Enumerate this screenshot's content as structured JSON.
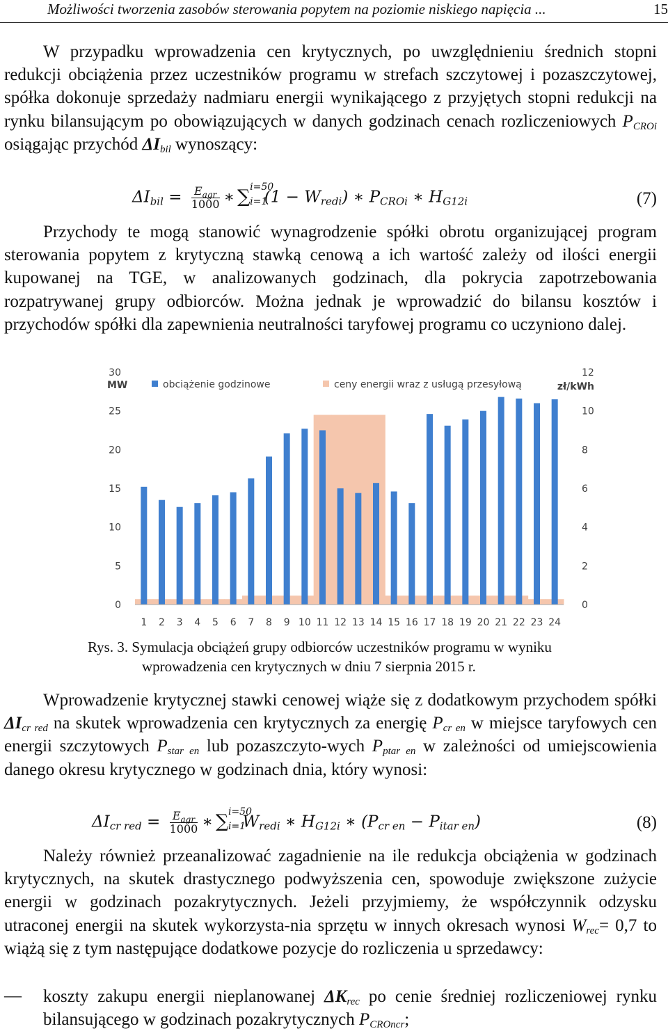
{
  "header": {
    "running_title": "Możliwości  tworzenia zasobów sterowania popytem na poziomie niskiego napięcia ...",
    "page_number": "15"
  },
  "para1": {
    "text_a": "W przypadku wprowadzenia cen krytycznych, po uwzględnieniu średnich stopni redukcji obciążenia przez uczestników programu w strefach szczytowej i pozaszczytowej, spółka dokonuje sprzedaży nadmiaru energii wynikającego z przyjętych stopni redukcji na rynku bilansującym po obowiązujących w danych godzinach cenach rozliczeniowych ",
    "sym_P": "P",
    "sub_CROi": "CROi",
    "text_b": " osiągając przychód ",
    "sym_dI": "ΔI",
    "sub_bil": "bil",
    "text_c": " wynoszący:"
  },
  "eq7": {
    "lhs": "ΔI",
    "lhs_sub": "bil",
    "eq": " = ",
    "frac_num": "E",
    "frac_num_sub": "agr",
    "frac_den": "1000",
    "op1": "∗",
    "sigma": "∑",
    "sum_upper": "i=50",
    "sum_lower": "i=1",
    "term1": "(1 − W",
    "term1_sub": "redi",
    "term1_close": ")",
    "op2": " ∗ P",
    "term2_sub": "CROi",
    "op3": " ∗ H",
    "term3_sub": "G12i",
    "number": "(7)"
  },
  "para2": "Przychody te mogą stanowić wynagrodzenie spółki obrotu organizującej program sterowania popytem z krytyczną stawką cenową a ich wartość zależy od ilości energii kupowanej na TGE, w analizowanych godzinach, dla pokrycia zapotrzebowania rozpatrywanej grupy odbiorców. Można jednak je wprowadzić do bilansu kosztów i przychodów spółki dla zapewnienia neutralności taryfowej programu co uczyniono dalej.",
  "chart_data": {
    "type": "bar",
    "categories": [
      "1",
      "2",
      "3",
      "4",
      "5",
      "6",
      "7",
      "8",
      "9",
      "10",
      "11",
      "12",
      "13",
      "14",
      "15",
      "16",
      "17",
      "18",
      "19",
      "20",
      "21",
      "22",
      "23",
      "24"
    ],
    "series": [
      {
        "name": "obciążenie godzinowe",
        "axis": "left",
        "color": "#3f7fcf",
        "values": [
          15.2,
          13.5,
          12.6,
          13.1,
          14.1,
          14.5,
          16.3,
          19.1,
          22.1,
          22.7,
          22.5,
          15.0,
          14.4,
          15.7,
          14.6,
          13.1,
          24.6,
          23.1,
          23.9,
          25.0,
          26.8,
          26.6,
          26.0,
          26.5
        ]
      },
      {
        "name": "ceny energii wraz z usługą przesyłową",
        "axis": "right",
        "color": "#f5c6ad",
        "values": [
          0.28,
          0.28,
          0.28,
          0.28,
          0.28,
          0.28,
          0.46,
          0.46,
          0.46,
          0.46,
          9.8,
          9.8,
          9.8,
          9.8,
          0.46,
          0.46,
          0.46,
          0.46,
          0.46,
          0.46,
          0.46,
          0.46,
          0.28,
          0.28
        ]
      }
    ],
    "left_axis": {
      "unit": "MW",
      "ylim": [
        0,
        30
      ],
      "ticks": [
        "0",
        "5",
        "10",
        "15",
        "20",
        "25",
        "30"
      ]
    },
    "right_axis": {
      "unit": "zł/kWh",
      "ylim": [
        0,
        12
      ],
      "ticks": [
        "0",
        "2",
        "4",
        "6",
        "8",
        "10",
        "12"
      ]
    },
    "legend_position": "top",
    "grid": false
  },
  "caption": {
    "line1": "Rys. 3. Symulacja obciążeń grupy odbiorców uczestników programu w wyniku",
    "line2": "wprowadzenia cen krytycznych w dniu 7 sierpnia 2015 r."
  },
  "para3": {
    "t1": "Wprowadzenie krytycznej stawki cenowej wiąże się z dodatkowym przychodem spółki ",
    "dI": "ΔI",
    "dI_sub": "cr red",
    "t2": " na skutek wprowadzenia cen krytycznych za energię ",
    "P1": "P",
    "P1_sub": "cr en",
    "t3": " w miejsce taryfowych cen energii szczytowych ",
    "P2": "P",
    "P2_sub": "star en",
    "t4": " lub pozaszczyto-wych ",
    "P3": "P",
    "P3_sub": "ptar en",
    "t5": " w zależności od umiejscowienia danego okresu krytycznego w godzinach dnia, który wynosi:"
  },
  "eq8": {
    "lhs": "ΔI",
    "lhs_sub": "cr red",
    "eq": " = ",
    "frac_num": "E",
    "frac_num_sub": "agr",
    "frac_den": "1000",
    "op1": "∗",
    "sigma": "∑",
    "sum_upper": "i=50",
    "sum_lower": "i=1",
    "term1": "W",
    "term1_sub": "redi",
    "op2": " ∗ H",
    "term2_sub": "G12i",
    "op3": " ∗ (P",
    "term3_sub": "cr en",
    "op4": " − P",
    "term4_sub": "itar en",
    "close": ")",
    "number": "(8)"
  },
  "para4": {
    "t1": "Należy również przeanalizować zagadnienie na ile redukcja obciążenia w godzinach krytycznych, na skutek drastycznego podwyższenia cen, spowoduje zwiększone zużycie energii w godzinach pozakrytycznych. Jeżeli przyjmiemy, że współczynnik odzysku utraconej energii na skutek wykorzysta-nia sprzętu w innych okresach wynosi ",
    "W": "W",
    "W_sub": "rec",
    "t2": "= 0,7 to wiążą się z tym następujące dodatkowe pozycje do rozliczenia u sprzedawcy:"
  },
  "list_item": {
    "dash": "—",
    "t1": "koszty zakupu energii nieplanowanej ",
    "K": "ΔK",
    "K_sub": "rec",
    "t2": " po cenie średniej rozliczeniowej rynku bilansującego w godzinach pozakrytycznych ",
    "P": "P",
    "P_sub": "CROncr",
    "t3": ";"
  }
}
